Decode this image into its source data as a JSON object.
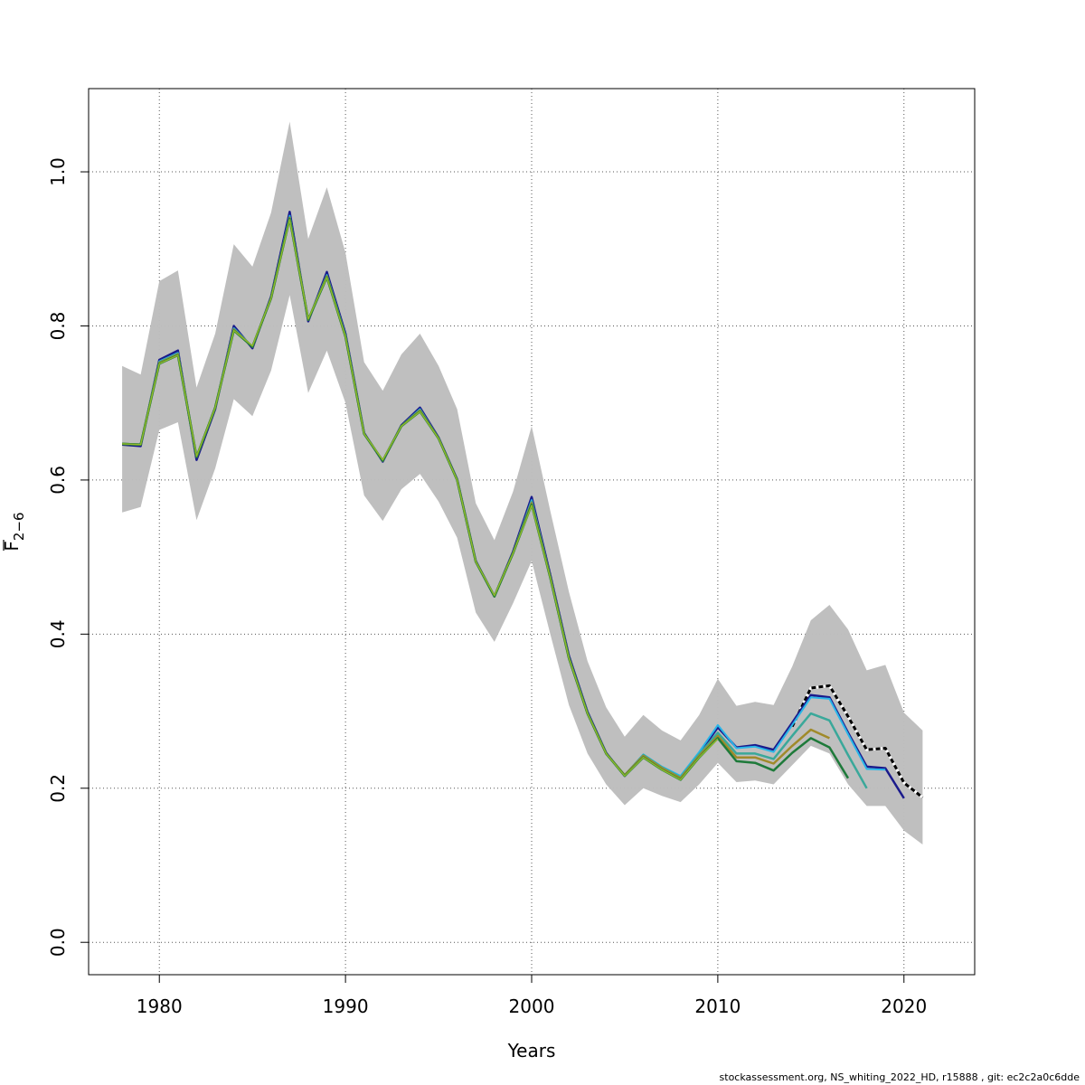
{
  "chart_data": {
    "type": "line",
    "xlabel": "Years",
    "ylabel_base": "F",
    "ylabel_sub": "2−6",
    "xlim": [
      1976.2,
      2023.8
    ],
    "ylim": [
      -0.042,
      1.108
    ],
    "x_ticks": [
      1980,
      1990,
      2000,
      2010,
      2020
    ],
    "y_ticks": [
      0.0,
      0.2,
      0.4,
      0.6,
      0.8,
      1.0
    ],
    "y_tick_labels": [
      "0.0",
      "0.2",
      "0.4",
      "0.6",
      "0.8",
      "1.0"
    ],
    "grid": true,
    "band": {
      "x": [
        1978,
        1979,
        1980,
        1981,
        1982,
        1983,
        1984,
        1985,
        1986,
        1987,
        1988,
        1989,
        1990,
        1991,
        1992,
        1993,
        1994,
        1995,
        1996,
        1997,
        1998,
        1999,
        2000,
        2001,
        2002,
        2003,
        2004,
        2005,
        2006,
        2007,
        2008,
        2009,
        2010,
        2011,
        2012,
        2013,
        2014,
        2015,
        2016,
        2017,
        2018,
        2019,
        2020,
        2021
      ],
      "lower": [
        0.558,
        0.565,
        0.665,
        0.675,
        0.548,
        0.615,
        0.705,
        0.683,
        0.742,
        0.84,
        0.713,
        0.768,
        0.7,
        0.58,
        0.547,
        0.588,
        0.608,
        0.572,
        0.525,
        0.428,
        0.39,
        0.44,
        0.495,
        0.4,
        0.308,
        0.245,
        0.205,
        0.178,
        0.2,
        0.19,
        0.182,
        0.205,
        0.233,
        0.208,
        0.21,
        0.205,
        0.23,
        0.255,
        0.245,
        0.205,
        0.177,
        0.177,
        0.145,
        0.127
      ],
      "upper": [
        0.748,
        0.737,
        0.858,
        0.872,
        0.72,
        0.79,
        0.906,
        0.877,
        0.947,
        1.065,
        0.913,
        0.98,
        0.895,
        0.753,
        0.716,
        0.763,
        0.79,
        0.748,
        0.692,
        0.57,
        0.522,
        0.585,
        0.67,
        0.56,
        0.455,
        0.365,
        0.305,
        0.267,
        0.295,
        0.275,
        0.262,
        0.295,
        0.342,
        0.307,
        0.312,
        0.308,
        0.358,
        0.418,
        0.438,
        0.406,
        0.353,
        0.36,
        0.298,
        0.275
      ]
    },
    "series": [
      {
        "color": "#000000",
        "dashed": true,
        "width": 3,
        "x": [
          2014,
          2015,
          2016,
          2017,
          2018,
          2019,
          2020,
          2021
        ],
        "values": [
          0.28,
          0.33,
          0.333,
          0.293,
          0.25,
          0.252,
          0.207,
          0.188
        ]
      },
      {
        "color": "#1a1a8c",
        "width": 2.5,
        "x": [
          1978,
          1979,
          1980,
          1981,
          1982,
          1983,
          1984,
          1985,
          1986,
          1987,
          1988,
          1989,
          1990,
          1991,
          1992,
          1993,
          1994,
          1995,
          1996,
          1997,
          1998,
          1999,
          2000,
          2001,
          2002,
          2003,
          2004,
          2005,
          2006,
          2007,
          2008,
          2009,
          2010,
          2011,
          2012,
          2013,
          2014,
          2015,
          2016,
          2017,
          2018,
          2019,
          2020
        ],
        "values": [
          0.646,
          0.644,
          0.756,
          0.768,
          0.626,
          0.692,
          0.8,
          0.771,
          0.838,
          0.948,
          0.806,
          0.87,
          0.79,
          0.661,
          0.624,
          0.671,
          0.694,
          0.655,
          0.601,
          0.495,
          0.449,
          0.507,
          0.578,
          0.477,
          0.372,
          0.299,
          0.246,
          0.216,
          0.242,
          0.226,
          0.213,
          0.245,
          0.279,
          0.253,
          0.256,
          0.25,
          0.285,
          0.321,
          0.318,
          0.272,
          0.228,
          0.226,
          0.187
        ]
      },
      {
        "color": "#29b6e8",
        "width": 2,
        "x": [
          1978,
          1979,
          1980,
          1981,
          1982,
          1983,
          1984,
          1985,
          1986,
          1987,
          1988,
          1989,
          1990,
          1991,
          1992,
          1993,
          1994,
          1995,
          1996,
          1997,
          1998,
          1999,
          2000,
          2001,
          2002,
          2003,
          2004,
          2005,
          2006,
          2007,
          2008,
          2009,
          2010,
          2011,
          2012,
          2013,
          2014,
          2015,
          2016,
          2017,
          2018,
          2019
        ],
        "values": [
          0.647,
          0.646,
          0.754,
          0.765,
          0.63,
          0.694,
          0.797,
          0.773,
          0.836,
          0.943,
          0.808,
          0.866,
          0.788,
          0.66,
          0.625,
          0.67,
          0.692,
          0.654,
          0.6,
          0.494,
          0.449,
          0.505,
          0.574,
          0.475,
          0.37,
          0.298,
          0.245,
          0.217,
          0.244,
          0.228,
          0.216,
          0.247,
          0.282,
          0.252,
          0.254,
          0.247,
          0.282,
          0.318,
          0.316,
          0.27,
          0.225,
          0.224
        ]
      },
      {
        "color": "#3aa89a",
        "width": 2.5,
        "x": [
          1978,
          1979,
          1980,
          1981,
          1982,
          1983,
          1984,
          1985,
          1986,
          1987,
          1988,
          1989,
          1990,
          1991,
          1992,
          1993,
          1994,
          1995,
          1996,
          1997,
          1998,
          1999,
          2000,
          2001,
          2002,
          2003,
          2004,
          2005,
          2006,
          2007,
          2008,
          2009,
          2010,
          2011,
          2012,
          2013,
          2014,
          2015,
          2016,
          2017,
          2018
        ],
        "values": [
          0.647,
          0.646,
          0.753,
          0.764,
          0.63,
          0.694,
          0.796,
          0.773,
          0.836,
          0.941,
          0.808,
          0.865,
          0.787,
          0.66,
          0.625,
          0.67,
          0.691,
          0.654,
          0.6,
          0.494,
          0.449,
          0.505,
          0.572,
          0.474,
          0.369,
          0.297,
          0.245,
          0.217,
          0.243,
          0.227,
          0.214,
          0.244,
          0.272,
          0.245,
          0.245,
          0.238,
          0.268,
          0.297,
          0.288,
          0.243,
          0.2
        ]
      },
      {
        "color": "#a08a2a",
        "width": 2.5,
        "x": [
          1978,
          1979,
          1980,
          1981,
          1982,
          1983,
          1984,
          1985,
          1986,
          1987,
          1988,
          1989,
          1990,
          1991,
          1992,
          1993,
          1994,
          1995,
          1996,
          1997,
          1998,
          1999,
          2000,
          2001,
          2002,
          2003,
          2004,
          2005,
          2006,
          2007,
          2008,
          2009,
          2010,
          2011,
          2012,
          2013,
          2014,
          2015,
          2016
        ],
        "values": [
          0.647,
          0.646,
          0.752,
          0.763,
          0.63,
          0.694,
          0.795,
          0.773,
          0.836,
          0.94,
          0.808,
          0.864,
          0.786,
          0.66,
          0.625,
          0.67,
          0.69,
          0.654,
          0.6,
          0.494,
          0.449,
          0.505,
          0.57,
          0.474,
          0.369,
          0.297,
          0.245,
          0.217,
          0.242,
          0.226,
          0.213,
          0.242,
          0.268,
          0.24,
          0.24,
          0.232,
          0.255,
          0.276,
          0.265
        ]
      },
      {
        "color": "#1e7a3a",
        "width": 2.5,
        "x": [
          1978,
          1979,
          1980,
          1981,
          1982,
          1983,
          1984,
          1985,
          1986,
          1987,
          1988,
          1989,
          1990,
          1991,
          1992,
          1993,
          1994,
          1995,
          1996,
          1997,
          1998,
          1999,
          2000,
          2001,
          2002,
          2003,
          2004,
          2005,
          2006,
          2007,
          2008,
          2009,
          2010,
          2011,
          2012,
          2013,
          2014,
          2015,
          2016,
          2017
        ],
        "values": [
          0.647,
          0.646,
          0.751,
          0.762,
          0.63,
          0.694,
          0.794,
          0.773,
          0.836,
          0.939,
          0.808,
          0.863,
          0.786,
          0.66,
          0.625,
          0.67,
          0.689,
          0.654,
          0.6,
          0.494,
          0.449,
          0.505,
          0.568,
          0.473,
          0.369,
          0.297,
          0.245,
          0.216,
          0.24,
          0.224,
          0.211,
          0.24,
          0.265,
          0.235,
          0.233,
          0.223,
          0.246,
          0.265,
          0.253,
          0.213
        ]
      },
      {
        "color": "#8fb82a",
        "width": 1.5,
        "x": [
          1978,
          1979,
          1980,
          1981,
          1982,
          1983,
          1984,
          1985,
          1986,
          1987,
          1988,
          1989,
          1990,
          1991,
          1992,
          1993,
          1994,
          1995,
          1996,
          1997,
          1998,
          1999,
          2000,
          2001,
          2002,
          2003,
          2004,
          2005,
          2006,
          2007,
          2008,
          2009,
          2010
        ],
        "values": [
          0.647,
          0.646,
          0.751,
          0.762,
          0.631,
          0.694,
          0.794,
          0.774,
          0.836,
          0.938,
          0.809,
          0.863,
          0.786,
          0.66,
          0.626,
          0.67,
          0.689,
          0.654,
          0.6,
          0.494,
          0.45,
          0.505,
          0.567,
          0.473,
          0.369,
          0.297,
          0.245,
          0.216,
          0.24,
          0.224,
          0.211,
          0.24,
          0.264
        ]
      }
    ]
  },
  "footer": "stockassessment.org, NS_whiting_2022_HD, r15888 , git: ec2c2a0c6dde"
}
